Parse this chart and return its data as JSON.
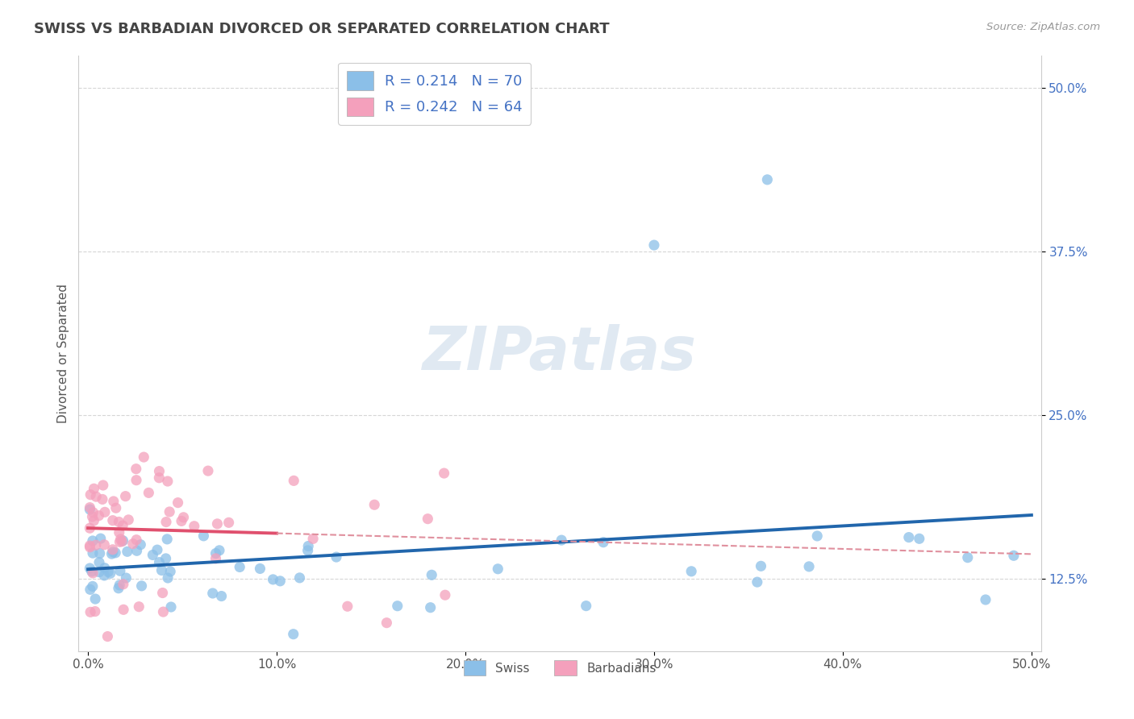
{
  "title": "SWISS VS BARBADIAN DIVORCED OR SEPARATED CORRELATION CHART",
  "source": "Source: ZipAtlas.com",
  "ylabel": "Divorced or Separated",
  "xlabel": "",
  "xlim": [
    -0.005,
    0.505
  ],
  "ylim": [
    0.07,
    0.525
  ],
  "xticks": [
    0.0,
    0.1,
    0.2,
    0.3,
    0.4,
    0.5
  ],
  "xticklabels": [
    "0.0%",
    "10.0%",
    "20.0%",
    "30.0%",
    "40.0%",
    "50.0%"
  ],
  "yticks_right": [
    0.125,
    0.25,
    0.375,
    0.5
  ],
  "yticklabels_right": [
    "12.5%",
    "25.0%",
    "37.5%",
    "50.0%"
  ],
  "swiss_color": "#8bbfe8",
  "barbadian_color": "#f4a0bc",
  "swiss_line_color": "#2166ac",
  "barbadian_line_color": "#e0506e",
  "barbadian_dash_color": "#e0909e",
  "swiss_R": 0.214,
  "swiss_N": 70,
  "barbadian_R": 0.242,
  "barbadian_N": 64,
  "background_color": "#ffffff",
  "watermark": "ZIPatlas",
  "grid_color": "#cccccc",
  "title_color": "#555555"
}
